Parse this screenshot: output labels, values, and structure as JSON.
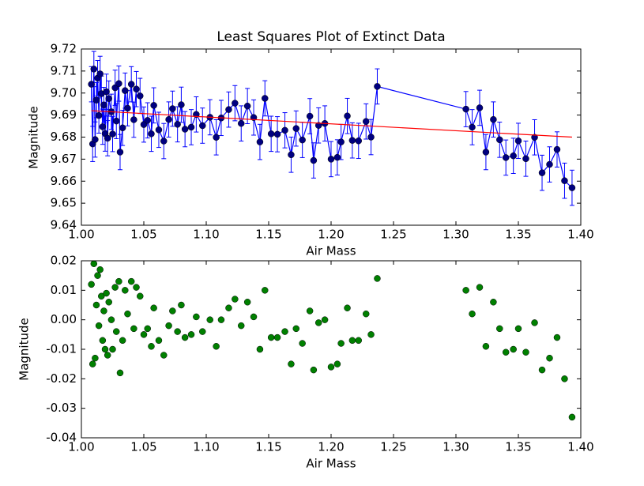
{
  "chart_data": [
    {
      "type": "line",
      "title": "Least Squares Plot of Extinct Data",
      "xlabel": "Air Mass",
      "ylabel": "Magnitude",
      "xlim": [
        1.0,
        1.4
      ],
      "ylim": [
        9.64,
        9.72
      ],
      "xticks": [
        {
          "value": 1.0,
          "label": "1.00"
        },
        1.05,
        {
          "value": 1.1,
          "label": "1.10"
        },
        1.15,
        {
          "value": 1.2,
          "label": "1.20"
        },
        1.25,
        {
          "value": 1.3,
          "label": "1.30"
        },
        1.35,
        {
          "value": 1.4,
          "label": "1.40"
        }
      ],
      "yticks": [
        9.64,
        9.65,
        9.66,
        9.67,
        9.68,
        9.69,
        {
          "value": 9.7,
          "label": "9.70"
        },
        9.71,
        9.72
      ],
      "series": [
        {
          "color": "#0000ff",
          "marker_color": "#000080",
          "x": [
            1.008,
            1.009,
            1.01,
            1.011,
            1.012,
            1.013,
            1.014,
            1.015,
            1.016,
            1.017,
            1.018,
            1.019,
            1.02,
            1.021,
            1.022,
            1.024,
            1.025,
            1.027,
            1.028,
            1.03,
            1.031,
            1.033,
            1.035,
            1.037,
            1.04,
            1.042,
            1.044,
            1.047,
            1.05,
            1.053,
            1.056,
            1.058,
            1.062,
            1.066,
            1.07,
            1.073,
            1.077,
            1.08,
            1.083,
            1.088,
            1.092,
            1.097,
            1.103,
            1.108,
            1.112,
            1.118,
            1.123,
            1.128,
            1.133,
            1.138,
            1.143,
            1.147,
            1.152,
            1.157,
            1.163,
            1.168,
            1.172,
            1.177,
            1.183,
            1.186,
            1.19,
            1.195,
            1.2,
            1.205,
            1.208,
            1.213,
            1.217,
            1.222,
            1.228,
            1.232,
            1.237,
            1.308,
            1.313,
            1.319,
            1.324,
            1.33,
            1.335,
            1.34,
            1.346,
            1.35,
            1.356,
            1.363,
            1.369,
            1.375,
            1.381,
            1.387,
            1.393
          ],
          "values": [
            9.704,
            9.6769,
            9.7109,
            9.6789,
            9.6968,
            9.7068,
            9.6898,
            9.7087,
            9.6997,
            9.6847,
            9.6946,
            9.6816,
            9.7006,
            9.6795,
            9.6975,
            9.6915,
            9.6814,
            9.7024,
            9.6873,
            9.7043,
            9.6732,
            9.6842,
            9.7011,
            9.6931,
            9.704,
            9.6879,
            9.7018,
            9.6987,
            9.6857,
            9.6876,
            9.6815,
            9.6944,
            9.6833,
            9.6782,
            9.688,
            9.6929,
            9.6858,
            9.6947,
            9.6836,
            9.6845,
            9.6903,
            9.6852,
            9.689,
            9.6799,
            9.6887,
            9.6925,
            9.6954,
            9.6862,
            9.6941,
            9.6889,
            9.6778,
            9.6976,
            9.6815,
            9.6813,
            9.6831,
            9.672,
            9.6839,
            9.6787,
            9.6895,
            9.6694,
            9.6853,
            9.6862,
            9.67,
            9.6708,
            9.6778,
            9.6896,
            9.6785,
            9.6783,
            9.6871,
            9.68,
            9.703,
            9.6927,
            9.6845,
            9.6933,
            9.6732,
            9.688,
            9.6788,
            9.6707,
            9.6715,
            9.6783,
            9.6702,
            9.6799,
            9.6638,
            9.6676,
            9.6744,
            9.6602,
            9.657
          ],
          "errors": [
            0.008,
            0.008,
            0.008,
            0.008,
            0.008,
            0.008,
            0.008,
            0.008,
            0.008,
            0.008,
            0.008,
            0.008,
            0.008,
            0.008,
            0.008,
            0.008,
            0.008,
            0.008,
            0.008,
            0.008,
            0.008,
            0.008,
            0.008,
            0.008,
            0.008,
            0.008,
            0.008,
            0.008,
            0.008,
            0.008,
            0.008,
            0.008,
            0.008,
            0.008,
            0.008,
            0.008,
            0.008,
            0.008,
            0.008,
            0.008,
            0.008,
            0.008,
            0.008,
            0.008,
            0.008,
            0.008,
            0.008,
            0.008,
            0.008,
            0.008,
            0.008,
            0.008,
            0.008,
            0.008,
            0.008,
            0.008,
            0.008,
            0.008,
            0.008,
            0.008,
            0.008,
            0.008,
            0.008,
            0.008,
            0.008,
            0.008,
            0.008,
            0.008,
            0.008,
            0.008,
            0.008,
            0.008,
            0.008,
            0.008,
            0.008,
            0.008,
            0.008,
            0.008,
            0.008,
            0.008,
            0.008,
            0.008,
            0.008,
            0.008,
            0.008,
            0.008,
            0.008
          ]
        },
        {
          "color": "#ff0000",
          "x": [
            1.008,
            1.393
          ],
          "values": [
            9.692,
            9.68
          ]
        }
      ]
    },
    {
      "type": "scatter",
      "xlabel": "Air Mass",
      "ylabel": "Magnitude",
      "xlim": [
        1.0,
        1.4
      ],
      "ylim": [
        -0.04,
        0.02
      ],
      "xticks": [
        {
          "value": 1.0,
          "label": "1.00"
        },
        1.05,
        {
          "value": 1.1,
          "label": "1.10"
        },
        1.15,
        {
          "value": 1.2,
          "label": "1.20"
        },
        1.25,
        {
          "value": 1.3,
          "label": "1.30"
        },
        1.35,
        {
          "value": 1.4,
          "label": "1.40"
        }
      ],
      "yticks": [
        -0.04,
        -0.03,
        -0.02,
        -0.01,
        {
          "value": 0,
          "label": "0.00"
        },
        0.01,
        0.02
      ],
      "series": [
        {
          "color": "#008000",
          "x": [
            1.008,
            1.009,
            1.01,
            1.011,
            1.012,
            1.013,
            1.014,
            1.015,
            1.016,
            1.017,
            1.018,
            1.019,
            1.02,
            1.021,
            1.022,
            1.024,
            1.025,
            1.027,
            1.028,
            1.03,
            1.031,
            1.033,
            1.035,
            1.037,
            1.04,
            1.042,
            1.044,
            1.047,
            1.05,
            1.053,
            1.056,
            1.058,
            1.062,
            1.066,
            1.07,
            1.073,
            1.077,
            1.08,
            1.083,
            1.088,
            1.092,
            1.097,
            1.103,
            1.108,
            1.112,
            1.118,
            1.123,
            1.128,
            1.133,
            1.138,
            1.143,
            1.147,
            1.152,
            1.157,
            1.163,
            1.168,
            1.172,
            1.177,
            1.183,
            1.186,
            1.19,
            1.195,
            1.2,
            1.205,
            1.208,
            1.213,
            1.217,
            1.222,
            1.228,
            1.232,
            1.237,
            1.308,
            1.313,
            1.319,
            1.324,
            1.33,
            1.335,
            1.34,
            1.346,
            1.35,
            1.356,
            1.363,
            1.369,
            1.375,
            1.381,
            1.387,
            1.393
          ],
          "values": [
            0.012,
            -0.015,
            0.019,
            -0.013,
            0.005,
            0.015,
            -0.002,
            0.017,
            0.008,
            -0.007,
            0.003,
            -0.01,
            0.009,
            -0.012,
            0.006,
            0.0,
            -0.01,
            0.011,
            -0.004,
            0.013,
            -0.018,
            -0.007,
            0.01,
            0.002,
            0.013,
            -0.003,
            0.011,
            0.008,
            -0.005,
            -0.003,
            -0.009,
            0.004,
            -0.007,
            -0.012,
            -0.002,
            0.003,
            -0.004,
            0.005,
            -0.006,
            -0.005,
            0.001,
            -0.004,
            0.0,
            -0.009,
            0.0,
            0.004,
            0.007,
            -0.002,
            0.006,
            0.001,
            -0.01,
            0.01,
            -0.006,
            -0.006,
            -0.004,
            -0.015,
            -0.003,
            -0.008,
            0.003,
            -0.017,
            -0.001,
            0.0,
            -0.016,
            -0.015,
            -0.008,
            0.004,
            -0.007,
            -0.007,
            0.002,
            -0.005,
            0.014,
            0.01,
            0.002,
            0.011,
            -0.009,
            0.006,
            -0.003,
            -0.011,
            -0.01,
            -0.003,
            -0.011,
            -0.001,
            -0.017,
            -0.013,
            -0.006,
            -0.02,
            -0.033
          ]
        }
      ]
    }
  ]
}
